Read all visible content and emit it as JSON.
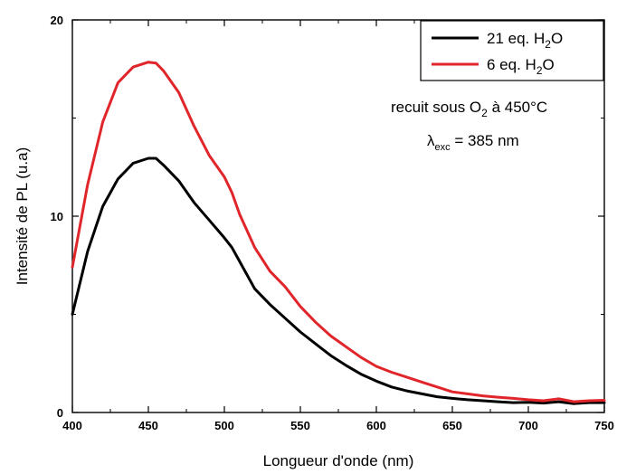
{
  "chart_data": {
    "type": "line",
    "xlabel": "Longueur d'onde (nm)",
    "ylabel": "Intensité de PL (u.a)",
    "xlim": [
      400,
      750
    ],
    "ylim": [
      0,
      20
    ],
    "xticks": [
      400,
      450,
      500,
      550,
      600,
      650,
      700,
      750
    ],
    "yticks": [
      0,
      10,
      20
    ],
    "grid": false,
    "legend_position": "top-right",
    "series": [
      {
        "name": "21 eq. H2O",
        "legend": {
          "main": "21 eq. H",
          "sub": "2",
          "end": "O"
        },
        "color": "#000000",
        "x": [
          400,
          410,
          420,
          430,
          440,
          450,
          455,
          460,
          470,
          480,
          490,
          500,
          505,
          510,
          520,
          530,
          540,
          550,
          560,
          570,
          580,
          590,
          600,
          610,
          620,
          630,
          640,
          650,
          660,
          670,
          680,
          690,
          700,
          710,
          720,
          730,
          740,
          750
        ],
        "y": [
          5.0,
          8.2,
          10.5,
          11.9,
          12.7,
          12.95,
          12.95,
          12.6,
          11.8,
          10.7,
          9.8,
          8.9,
          8.4,
          7.7,
          6.3,
          5.5,
          4.8,
          4.1,
          3.5,
          2.9,
          2.4,
          1.95,
          1.6,
          1.3,
          1.1,
          0.95,
          0.8,
          0.72,
          0.65,
          0.6,
          0.55,
          0.5,
          0.52,
          0.48,
          0.55,
          0.45,
          0.5,
          0.5
        ]
      },
      {
        "name": "6 eq. H2O",
        "legend": {
          "main": "6 eq. H",
          "sub": "2",
          "end": "O"
        },
        "color": "#e0262b",
        "x": [
          400,
          410,
          420,
          430,
          440,
          450,
          455,
          460,
          470,
          480,
          490,
          500,
          505,
          510,
          520,
          530,
          540,
          550,
          560,
          570,
          580,
          590,
          600,
          610,
          620,
          630,
          640,
          650,
          660,
          670,
          680,
          690,
          700,
          710,
          720,
          730,
          740,
          750
        ],
        "y": [
          7.4,
          11.6,
          14.8,
          16.8,
          17.6,
          17.85,
          17.8,
          17.4,
          16.3,
          14.6,
          13.1,
          12.0,
          11.2,
          10.1,
          8.4,
          7.2,
          6.4,
          5.4,
          4.6,
          3.9,
          3.35,
          2.8,
          2.35,
          2.05,
          1.8,
          1.55,
          1.3,
          1.05,
          0.95,
          0.85,
          0.78,
          0.72,
          0.65,
          0.6,
          0.7,
          0.55,
          0.6,
          0.62
        ]
      }
    ],
    "annotations": [
      {
        "main": "recuit sous O",
        "sub": "2",
        "end": " à 450°C"
      },
      {
        "symbol": "λ",
        "sub": "exc",
        "end": " = 385 nm"
      }
    ]
  }
}
